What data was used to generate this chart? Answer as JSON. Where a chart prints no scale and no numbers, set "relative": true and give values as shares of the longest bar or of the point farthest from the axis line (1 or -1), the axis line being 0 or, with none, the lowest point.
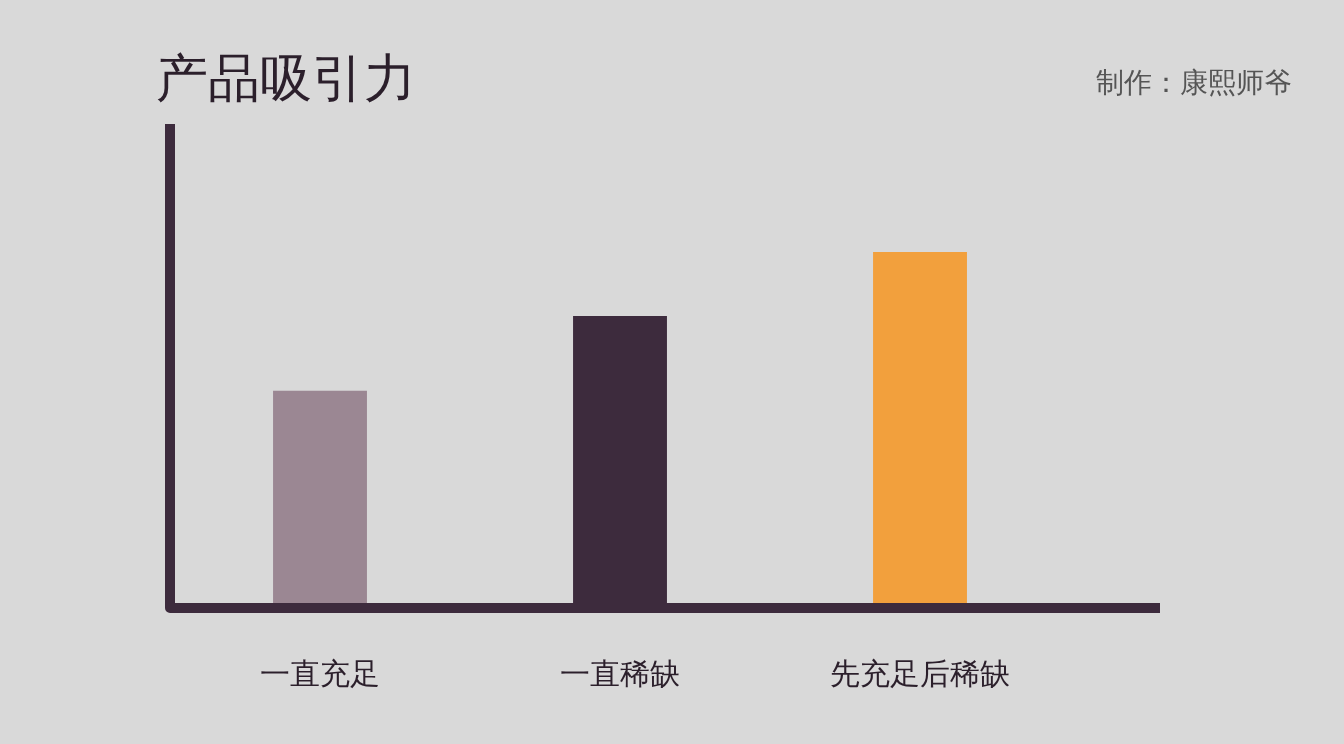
{
  "chart_data": {
    "type": "bar",
    "title": "产品吸引力",
    "annotations": [
      "制作：康熙师爷"
    ],
    "categories": [
      "一直充足",
      "一直稀缺",
      "先充足后稀缺"
    ],
    "values": [
      0.61,
      0.82,
      1
    ],
    "colors": [
      "#9b8793",
      "#3d2b3d",
      "#f2a03d"
    ],
    "relative": true,
    "grid": false,
    "legend": false
  }
}
